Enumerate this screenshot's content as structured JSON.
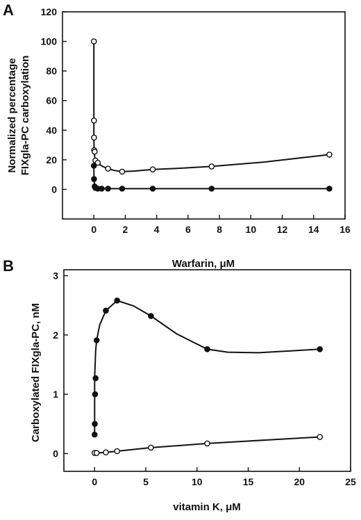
{
  "chart_data": [
    {
      "panel": "A",
      "type": "line",
      "xlabel": "Warfarin, μM",
      "ylabel": [
        "Normalized percentage",
        "FIXgla-PC carboxylation"
      ],
      "xlim": [
        -2,
        16
      ],
      "ylim": [
        -20,
        120
      ],
      "xticks": [
        0,
        2,
        4,
        6,
        8,
        10,
        12,
        14,
        16
      ],
      "yticks": [
        0,
        20,
        40,
        60,
        80,
        100,
        120
      ],
      "grid": false,
      "series": [
        {
          "marker": "open-circle",
          "x": [
            0,
            0.005,
            0.01,
            0.02,
            0.05,
            0.1,
            0.25,
            0.9,
            1.8,
            3.75,
            7.5,
            15
          ],
          "y": [
            100,
            46.5,
            35,
            26.5,
            25.5,
            19.5,
            18,
            14,
            12,
            13.5,
            15.5,
            23.5
          ]
        },
        {
          "marker": "filled-circle",
          "x": [
            0,
            0.01,
            0.05,
            0.1,
            0.25,
            0.5,
            0.9,
            1.8,
            3.75,
            7.5,
            15
          ],
          "y": [
            16,
            7,
            2,
            1,
            0.5,
            0.5,
            0.5,
            0.5,
            0.5,
            0.5,
            0.5
          ]
        }
      ]
    },
    {
      "panel": "B",
      "type": "line",
      "xlabel": "vitamin K, μM",
      "ylabel": [
        "Carboxylated FIXgla-PC, nM"
      ],
      "xlim": [
        -3,
        25
      ],
      "ylim": [
        -0.3,
        3.1
      ],
      "xticks": [
        0,
        5,
        10,
        15,
        20,
        25
      ],
      "yticks": [
        0,
        1,
        2,
        3
      ],
      "grid": false,
      "series": [
        {
          "marker": "filled-circle",
          "x": [
            0,
            0.02,
            0.05,
            0.1,
            0.2,
            1.1,
            2.2,
            5.5,
            11,
            22
          ],
          "y": [
            0.32,
            0.5,
            1.0,
            1.27,
            1.91,
            2.41,
            2.58,
            2.32,
            1.76,
            1.76
          ]
        },
        {
          "marker": "open-circle",
          "x": [
            0,
            0.2,
            1.1,
            2.2,
            5.5,
            11,
            22
          ],
          "y": [
            0.01,
            0.01,
            0.02,
            0.04,
            0.1,
            0.17,
            0.28
          ]
        }
      ]
    }
  ]
}
